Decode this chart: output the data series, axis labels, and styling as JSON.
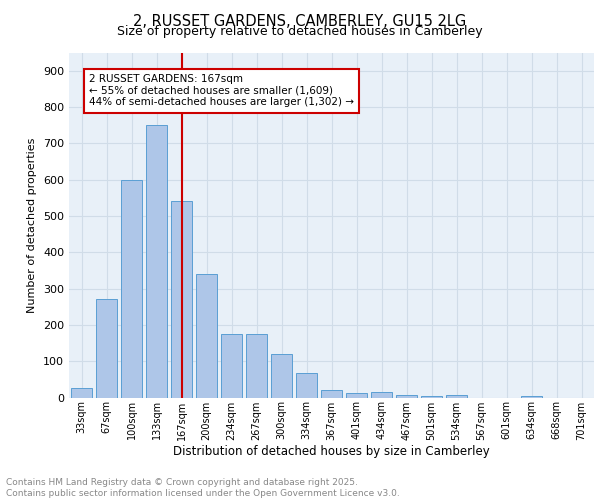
{
  "title_line1": "2, RUSSET GARDENS, CAMBERLEY, GU15 2LG",
  "title_line2": "Size of property relative to detached houses in Camberley",
  "xlabel": "Distribution of detached houses by size in Camberley",
  "ylabel": "Number of detached properties",
  "bar_labels": [
    "33sqm",
    "67sqm",
    "100sqm",
    "133sqm",
    "167sqm",
    "200sqm",
    "234sqm",
    "267sqm",
    "300sqm",
    "334sqm",
    "367sqm",
    "401sqm",
    "434sqm",
    "467sqm",
    "501sqm",
    "534sqm",
    "567sqm",
    "601sqm",
    "634sqm",
    "668sqm",
    "701sqm"
  ],
  "bar_values": [
    25,
    270,
    600,
    750,
    540,
    340,
    175,
    175,
    120,
    68,
    22,
    12,
    15,
    8,
    5,
    8,
    0,
    0,
    5,
    0,
    0
  ],
  "bar_color": "#aec6e8",
  "bar_edge_color": "#5a9fd4",
  "reference_line_x": 4,
  "ref_line_color": "#cc0000",
  "annotation_text": "2 RUSSET GARDENS: 167sqm\n← 55% of detached houses are smaller (1,609)\n44% of semi-detached houses are larger (1,302) →",
  "annotation_box_color": "#cc0000",
  "ylim": [
    0,
    950
  ],
  "yticks": [
    0,
    100,
    200,
    300,
    400,
    500,
    600,
    700,
    800,
    900
  ],
  "grid_color": "#d0dce8",
  "background_color": "#e8f0f8",
  "footer_line1": "Contains HM Land Registry data © Crown copyright and database right 2025.",
  "footer_line2": "Contains public sector information licensed under the Open Government Licence v3.0.",
  "footer_color": "#888888"
}
